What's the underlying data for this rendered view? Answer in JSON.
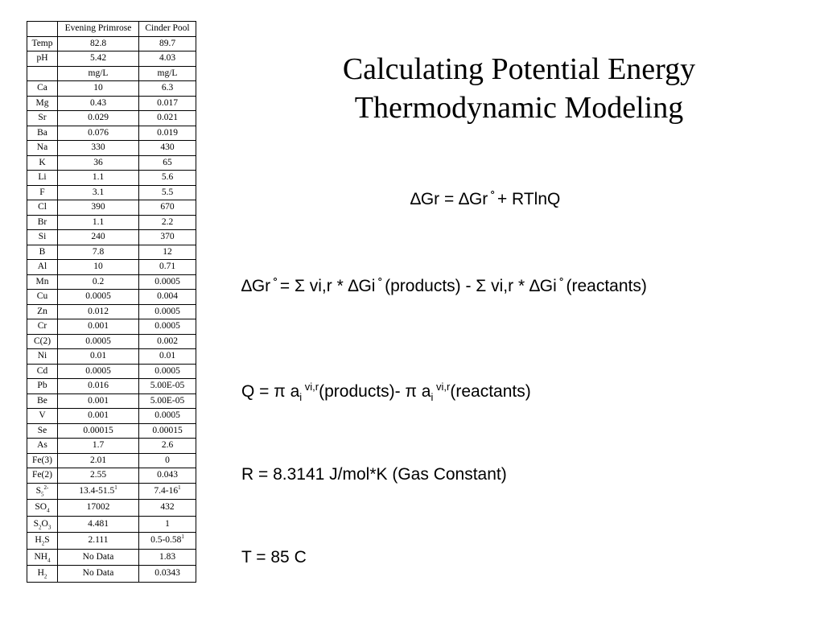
{
  "table": {
    "columns": [
      "",
      "Evening Primrose",
      "Cinder Pool"
    ],
    "rows": [
      {
        "label": "Temp",
        "ep": "82.8",
        "cp": "89.7"
      },
      {
        "label": "pH",
        "ep": "5.42",
        "cp": "4.03"
      },
      {
        "label": "",
        "ep": "mg/L",
        "cp": "mg/L"
      },
      {
        "label": "Ca",
        "ep": "10",
        "cp": "6.3"
      },
      {
        "label": "Mg",
        "ep": "0.43",
        "cp": "0.017"
      },
      {
        "label": "Sr",
        "ep": "0.029",
        "cp": "0.021"
      },
      {
        "label": "Ba",
        "ep": "0.076",
        "cp": "0.019"
      },
      {
        "label": "Na",
        "ep": "330",
        "cp": "430"
      },
      {
        "label": "K",
        "ep": "36",
        "cp": "65"
      },
      {
        "label": "Li",
        "ep": "1.1",
        "cp": "5.6"
      },
      {
        "label": "F",
        "ep": "3.1",
        "cp": "5.5"
      },
      {
        "label": "Cl",
        "ep": "390",
        "cp": "670"
      },
      {
        "label": "Br",
        "ep": "1.1",
        "cp": "2.2"
      },
      {
        "label": "Si",
        "ep": "240",
        "cp": "370"
      },
      {
        "label": "B",
        "ep": "7.8",
        "cp": "12"
      },
      {
        "label": "Al",
        "ep": "10",
        "cp": "0.71"
      },
      {
        "label": "Mn",
        "ep": "0.2",
        "cp": "0.0005"
      },
      {
        "label": "Cu",
        "ep": "0.0005",
        "cp": "0.004"
      },
      {
        "label": "Zn",
        "ep": "0.012",
        "cp": "0.0005"
      },
      {
        "label": "Cr",
        "ep": "0.001",
        "cp": "0.0005"
      },
      {
        "label": "C(2)",
        "ep": "0.0005",
        "cp": "0.002"
      },
      {
        "label": "Ni",
        "ep": "0.01",
        "cp": "0.01"
      },
      {
        "label": "Cd",
        "ep": "0.0005",
        "cp": "0.0005"
      },
      {
        "label": "Pb",
        "ep": "0.016",
        "cp": "5.00E-05"
      },
      {
        "label": "Be",
        "ep": "0.001",
        "cp": "5.00E-05"
      },
      {
        "label": "V",
        "ep": "0.001",
        "cp": "0.0005"
      },
      {
        "label": "Se",
        "ep": "0.00015",
        "cp": "0.00015"
      },
      {
        "label": "As",
        "ep": "1.7",
        "cp": "2.6"
      },
      {
        "label": "Fe(3)",
        "ep": "2.01",
        "cp": "0"
      },
      {
        "label": "Fe(2)",
        "ep": "2.55",
        "cp": "0.043"
      }
    ],
    "rich_rows": [
      {
        "base": "S",
        "sub": "5",
        "sup": "2-",
        "ep": "13.4-51.5",
        "ep_sup": "1",
        "cp": "7.4-16",
        "cp_sup": "1"
      },
      {
        "base": "SO",
        "sub": "4",
        "ep": "17002",
        "cp": "432"
      },
      {
        "base": "S",
        "sub": "2",
        "mid": "O",
        "sub2": "3",
        "ep": "4.481",
        "cp": "1"
      },
      {
        "base": "H",
        "sub": "2",
        "tail": "S",
        "ep": "2.111",
        "cp": "0.5-0.58",
        "cp_sup": "1"
      },
      {
        "base": "NH",
        "sub": "4",
        "ep": "No Data",
        "cp": "1.83"
      },
      {
        "base": "H",
        "sub": "2",
        "ep": "No Data",
        "cp": "0.0343"
      }
    ]
  },
  "title": {
    "line1": "Calculating Potential Energy",
    "line2": "Thermodynamic Modeling"
  },
  "equations": {
    "eq1": "∆Gr = ∆Gr ̊ + RTlnQ",
    "eq2": "∆Gr ̊ = Σ vi,r * ∆Gi ̊ (products) - Σ vi,r * ∆Gi ̊ (reactants)",
    "eq3": {
      "a": "Q = π a",
      "sub1": "i",
      "sup1": " vi,r",
      "b": "(products)- π a",
      "sub2": "i",
      "sup2": " vi,r",
      "c": "(reactants)"
    },
    "eq4": "R = 8.3141 J/mol*K (Gas Constant)",
    "eq5": "T = 85 C"
  }
}
